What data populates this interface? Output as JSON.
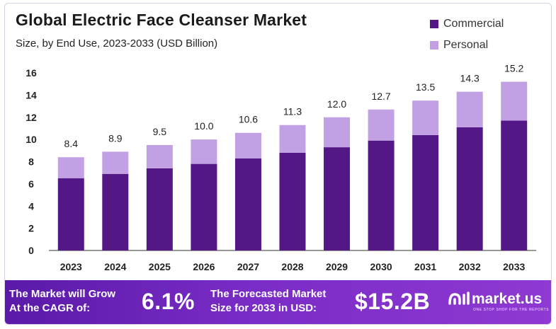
{
  "header": {
    "title": "Global Electric Face Cleanser Market",
    "subtitle": "Size, by End Use, 2023-2033  (USD Billion)"
  },
  "colors": {
    "commercial": "#541886",
    "personal": "#c2a0e4"
  },
  "chart_data": {
    "type": "bar",
    "stacked": true,
    "categories": [
      "2023",
      "2024",
      "2025",
      "2026",
      "2027",
      "2028",
      "2029",
      "2030",
      "2031",
      "2032",
      "2033"
    ],
    "series": [
      {
        "name": "Commercial",
        "values": [
          6.5,
          6.9,
          7.4,
          7.8,
          8.3,
          8.8,
          9.3,
          9.9,
          10.4,
          11.1,
          11.7
        ]
      },
      {
        "name": "Personal",
        "values": [
          1.9,
          2.0,
          2.1,
          2.2,
          2.3,
          2.5,
          2.7,
          2.8,
          3.1,
          3.2,
          3.5
        ]
      }
    ],
    "totals": [
      8.4,
      8.9,
      9.5,
      10.0,
      10.6,
      11.3,
      12.0,
      12.7,
      13.5,
      14.3,
      15.2
    ],
    "total_labels": [
      "8.4",
      "8.9",
      "9.5",
      "10.0",
      "10.6",
      "11.3",
      "12.0",
      "12.7",
      "13.5",
      "14.3",
      "15.2"
    ],
    "ylim": [
      0,
      16
    ],
    "yticks": [
      0,
      2,
      4,
      6,
      8,
      10,
      12,
      14,
      16
    ],
    "legend_position": "top-right",
    "grid": false
  },
  "footer": {
    "growth_text_1": "The Market will Grow",
    "growth_text_2": "At the CAGR of:",
    "cagr": "6.1%",
    "forecast_text_1": "The Forecasted Market",
    "forecast_text_2": "Size for 2033 in USD:",
    "forecast_value": "$15.2B",
    "brand_name": "market.us",
    "brand_tagline": "ONE STOP SHOP FOR THE REPORTS"
  }
}
